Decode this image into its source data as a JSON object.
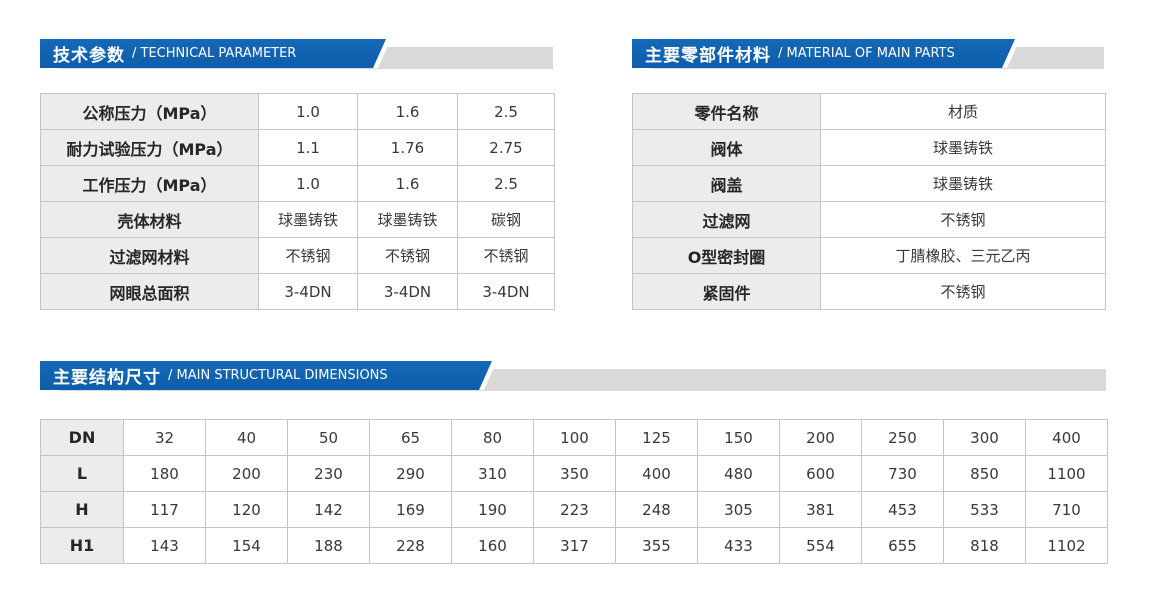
{
  "colors": {
    "header_blue": "#0d5dab",
    "header_blue_light": "#1569b6",
    "header_gray": "#d9d9d9",
    "cell_label_bg": "#ececec",
    "cell_border": "#c5c5c5",
    "header_text": "#ffffff",
    "body_text": "#383838"
  },
  "sections": {
    "technical": {
      "title_zh": "技术参数",
      "title_en": "/ TECHNICAL PARAMETER",
      "table": {
        "rows": [
          {
            "label": "公称压力（MPa）",
            "values": [
              "1.0",
              "1.6",
              "2.5"
            ]
          },
          {
            "label": "耐力试验压力（MPa）",
            "values": [
              "1.1",
              "1.76",
              "2.75"
            ]
          },
          {
            "label": "工作压力（MPa）",
            "values": [
              "1.0",
              "1.6",
              "2.5"
            ]
          },
          {
            "label": "壳体材料",
            "values": [
              "球墨铸铁",
              "球墨铸铁",
              "碳钢"
            ]
          },
          {
            "label": "过滤网材料",
            "values": [
              "不锈钢",
              "不锈钢",
              "不锈钢"
            ]
          },
          {
            "label": "网眼总面积",
            "values": [
              "3-4DN",
              "3-4DN",
              "3-4DN"
            ]
          }
        ]
      }
    },
    "materials": {
      "title_zh": "主要零部件材料",
      "title_en": "/ MATERIAL OF MAIN PARTS",
      "table": {
        "rows": [
          {
            "label": "零件名称",
            "values": [
              "材质"
            ]
          },
          {
            "label": "阀体",
            "values": [
              "球墨铸铁"
            ]
          },
          {
            "label": "阀盖",
            "values": [
              "球墨铸铁"
            ]
          },
          {
            "label": "过滤网",
            "values": [
              "不锈钢"
            ]
          },
          {
            "label": "O型密封圈",
            "values": [
              "丁腈橡胶、三元乙丙"
            ]
          },
          {
            "label": "紧固件",
            "values": [
              "不锈钢"
            ]
          }
        ]
      }
    },
    "dimensions": {
      "title_zh": "主要结构尺寸",
      "title_en": "/ MAIN STRUCTURAL DIMENSIONS",
      "table": {
        "rows": [
          {
            "label": "DN",
            "values": [
              "32",
              "40",
              "50",
              "65",
              "80",
              "100",
              "125",
              "150",
              "200",
              "250",
              "300",
              "400"
            ]
          },
          {
            "label": "L",
            "values": [
              "180",
              "200",
              "230",
              "290",
              "310",
              "350",
              "400",
              "480",
              "600",
              "730",
              "850",
              "1100"
            ]
          },
          {
            "label": "H",
            "values": [
              "117",
              "120",
              "142",
              "169",
              "190",
              "223",
              "248",
              "305",
              "381",
              "453",
              "533",
              "710"
            ]
          },
          {
            "label": "H1",
            "values": [
              "143",
              "154",
              "188",
              "228",
              "160",
              "317",
              "355",
              "433",
              "554",
              "655",
              "818",
              "1102"
            ]
          }
        ]
      }
    }
  }
}
